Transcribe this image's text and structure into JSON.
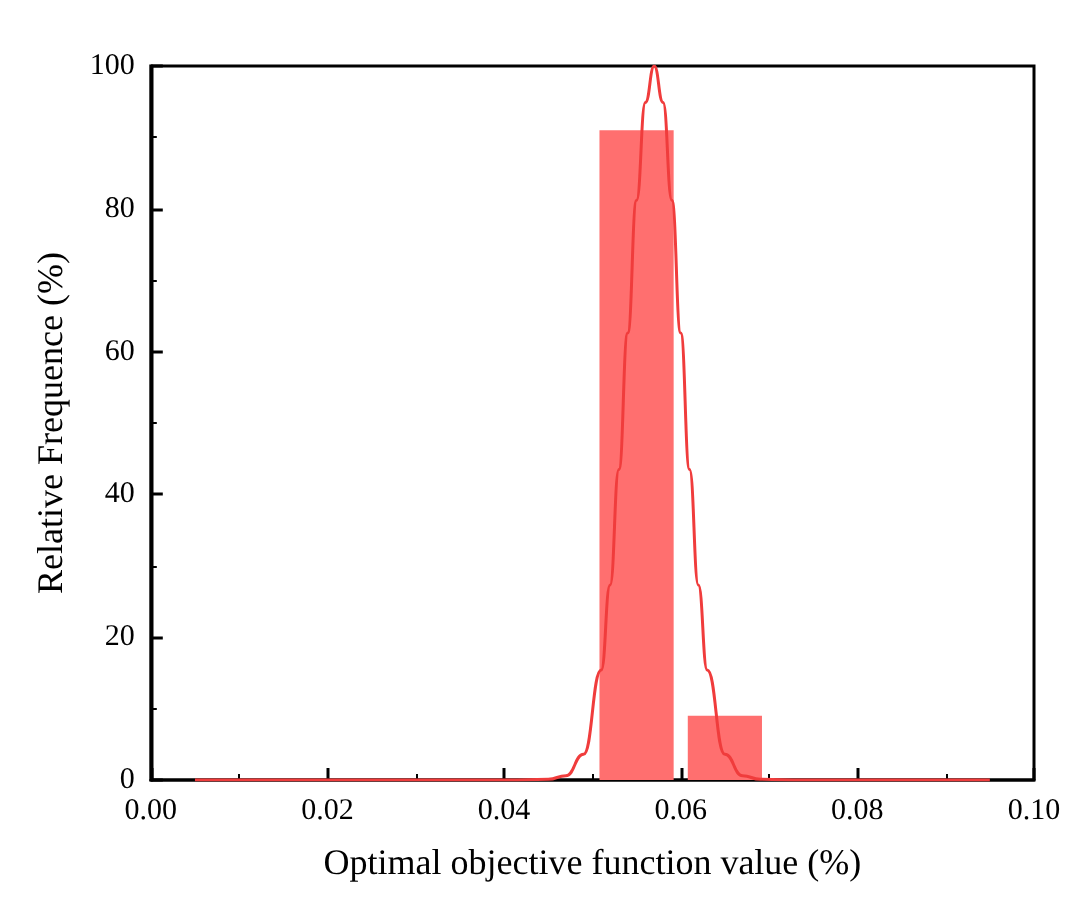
{
  "chart_data": {
    "type": "histogram",
    "xlabel": "Optimal objective function value (%)",
    "ylabel": "Relative Frequence (%)",
    "xlim": [
      0,
      0.1
    ],
    "xticks": [
      {
        "value": 0,
        "label": "0.00"
      },
      {
        "value": 0.02,
        "label": "0.02"
      },
      {
        "value": 0.04,
        "label": "0.04"
      },
      {
        "value": 0.06,
        "label": "0.06"
      },
      {
        "value": 0.08,
        "label": "0.08"
      },
      {
        "value": 0.1,
        "label": "0.10"
      }
    ],
    "ylim": [
      0,
      100
    ],
    "yticks": [
      0,
      20,
      40,
      60,
      80,
      100
    ],
    "grid": false,
    "series": [
      {
        "color": "#ff6f6f",
        "bins": [
          0.05,
          0.06,
          0.07
        ],
        "values": [
          91,
          9
        ]
      },
      {
        "type": "line",
        "color": "#f03c3c",
        "marker": "none",
        "x": [
          0.005,
          0.04,
          0.045,
          0.047,
          0.049,
          0.051,
          0.052,
          0.053,
          0.054,
          0.055,
          0.056,
          0.057,
          0.058,
          0.059,
          0.06,
          0.061,
          0.062,
          0.063,
          0.065,
          0.067,
          0.069,
          0.074,
          0.095
        ],
        "values": [
          0,
          0,
          0.1,
          0.6,
          3.6,
          15.4,
          27.3,
          43.5,
          62.6,
          81.2,
          94.9,
          100,
          94.9,
          81.2,
          62.6,
          43.5,
          27.3,
          15.4,
          3.6,
          0.6,
          0.1,
          0,
          0
        ]
      }
    ]
  }
}
